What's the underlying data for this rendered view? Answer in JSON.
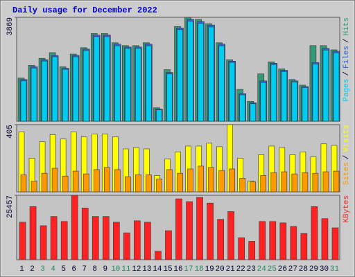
{
  "chart_data": [
    {
      "type": "bar",
      "title": "Daily usage for December 2022",
      "legend_separator": "/",
      "ylim": [
        0,
        3869
      ],
      "yticks": [
        3869
      ],
      "series": [
        {
          "name": "Pages",
          "color": "#00ccee",
          "values": [
            1500,
            1980,
            2240,
            2400,
            1930,
            2400,
            2630,
            3150,
            3150,
            2810,
            2710,
            2710,
            2810,
            420,
            1760,
            3410,
            3720,
            3640,
            3510,
            2810,
            2190,
            980,
            650,
            1440,
            2110,
            1850,
            1460,
            1250,
            2130,
            2650,
            2550
          ]
        },
        {
          "name": "Files",
          "color": "#3366dd",
          "values": [
            1553,
            2027,
            2290,
            2448,
            1974,
            2448,
            2685,
            3211,
            3211,
            2869,
            2764,
            2764,
            2869,
            447,
            1816,
            3474,
            3790,
            3711,
            3580,
            2869,
            2237,
            1026,
            684,
            1500,
            2158,
            1895,
            1500,
            1290,
            2185,
            2711,
            2606
          ]
        },
        {
          "name": "Hits",
          "color": "#339977",
          "values": [
            1606,
            2079,
            2342,
            2553,
            2027,
            2500,
            2737,
            3264,
            3264,
            2921,
            2816,
            2816,
            2921,
            500,
            1921,
            3527,
            3869,
            3790,
            3632,
            2921,
            2290,
            1184,
            737,
            1763,
            2211,
            1948,
            1553,
            1342,
            2816,
            2816,
            2658
          ]
        }
      ]
    },
    {
      "type": "bar",
      "legend_separator": "/",
      "ylim": [
        0,
        405
      ],
      "yticks": [
        405
      ],
      "series": [
        {
          "name": "Sites",
          "color": "#ff9900",
          "values": [
            103,
            65,
            112,
            142,
            95,
            125,
            108,
            134,
            147,
            134,
            91,
            103,
            103,
            78,
            134,
            112,
            138,
            155,
            147,
            129,
            138,
            82,
            60,
            99,
            116,
            121,
            108,
            116,
            112,
            121,
            125
          ]
        },
        {
          "name": "Visits",
          "color": "#ffff00",
          "values": [
            362,
            203,
            302,
            345,
            319,
            362,
            332,
            349,
            349,
            332,
            259,
            267,
            259,
            99,
            198,
            241,
            276,
            276,
            293,
            272,
            405,
            203,
            65,
            224,
            276,
            267,
            224,
            241,
            211,
            289,
            280
          ]
        }
      ]
    },
    {
      "type": "bar",
      "ylim": [
        0,
        25457
      ],
      "yticks": [
        25457
      ],
      "categories": [
        "1",
        "2",
        "3",
        "4",
        "5",
        "6",
        "7",
        "8",
        "9",
        "10",
        "11",
        "12",
        "13",
        "14",
        "15",
        "16",
        "17",
        "18",
        "19",
        "20",
        "21",
        "22",
        "23",
        "24",
        "25",
        "26",
        "27",
        "28",
        "29",
        "30",
        "31"
      ],
      "category_colors": [
        "#000033",
        "#000033",
        "#228866",
        "#228866",
        "#000033",
        "#000033",
        "#000033",
        "#000033",
        "#000033",
        "#228866",
        "#228866",
        "#000033",
        "#000033",
        "#000033",
        "#000033",
        "#000033",
        "#228866",
        "#228866",
        "#000033",
        "#000033",
        "#000033",
        "#000033",
        "#000033",
        "#228866",
        "#228866",
        "#000033",
        "#000033",
        "#000033",
        "#000033",
        "#000033",
        "#228866"
      ],
      "series": [
        {
          "name": "KBytes",
          "color": "#ff2222",
          "values": [
            14826,
            20981,
            13428,
            17065,
            15106,
            25457,
            20422,
            17065,
            17065,
            14826,
            10630,
            15386,
            14826,
            3357,
            11470,
            24058,
            22939,
            24617,
            22380,
            15945,
            19023,
            8672,
            7273,
            15106,
            15106,
            14547,
            13148,
            10351,
            20981,
            16226,
            12589
          ]
        }
      ]
    }
  ]
}
